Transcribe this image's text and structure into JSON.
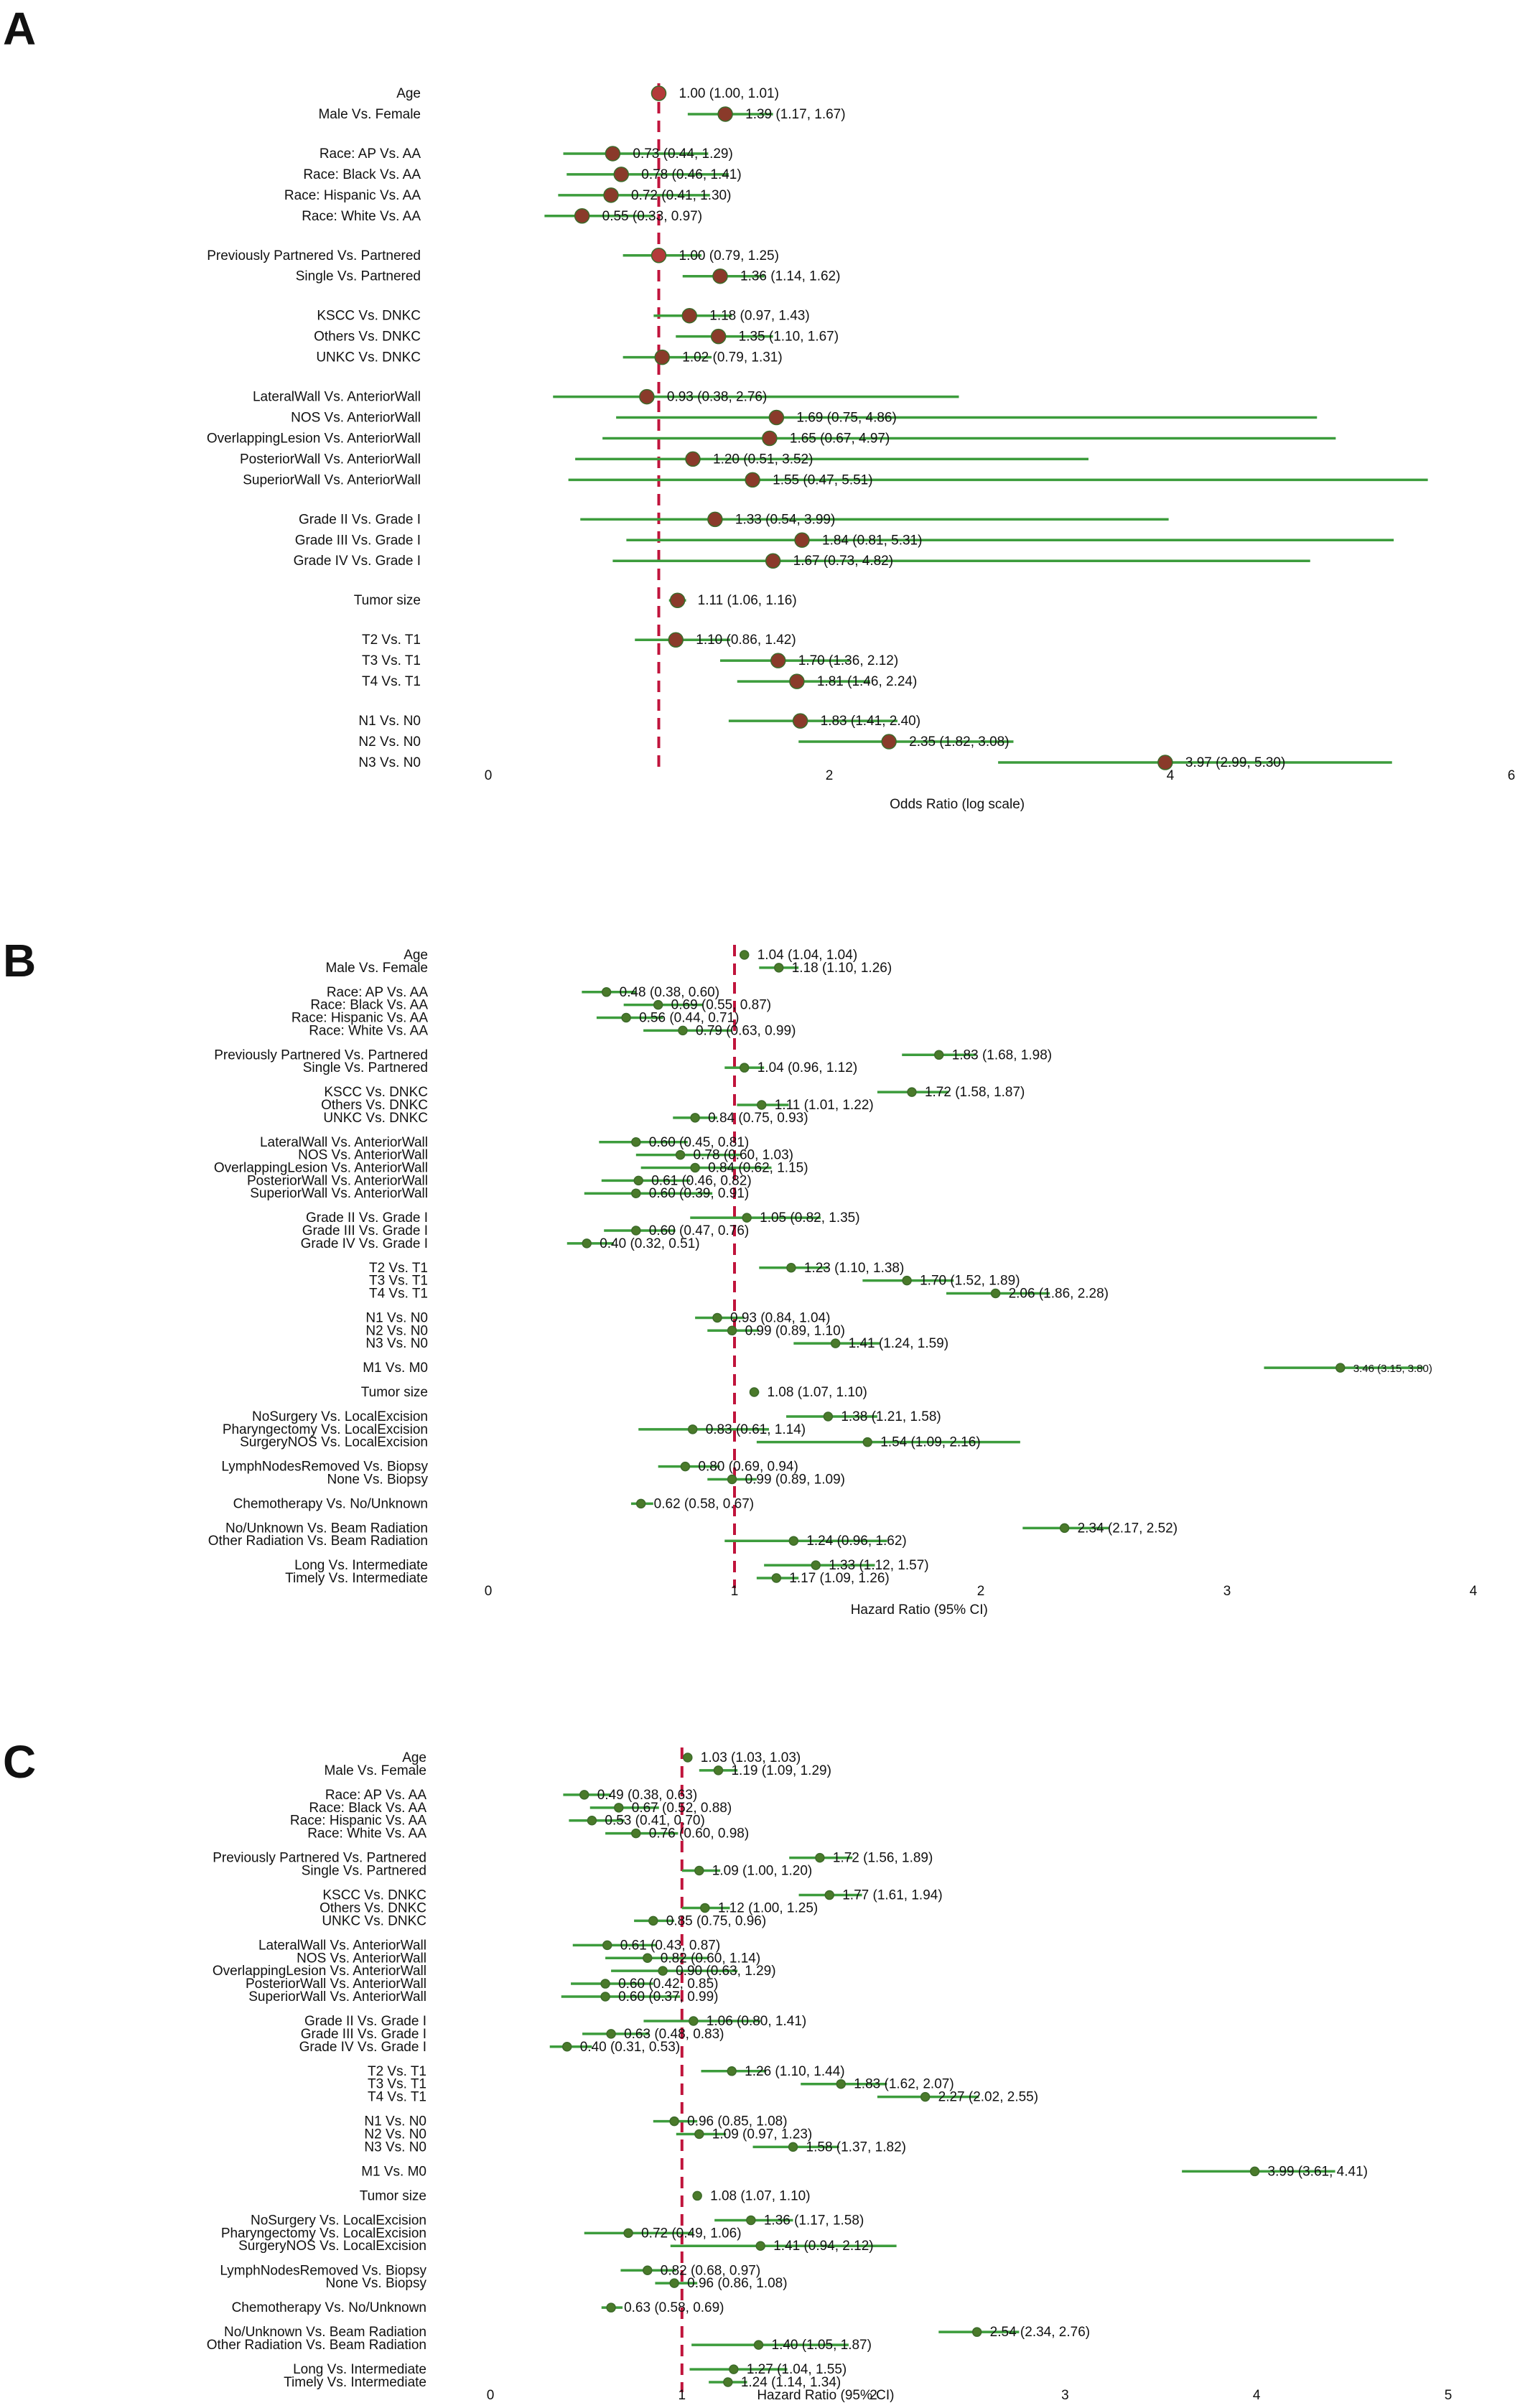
{
  "panels": [
    "A",
    "B",
    "C"
  ],
  "chart_data": [
    {
      "type": "forest",
      "panel": "A",
      "xlabel": "Odds Ratio (log scale)",
      "xticks": [
        0,
        2,
        4,
        6
      ],
      "xlim": [
        0,
        6
      ],
      "reference": 1,
      "colors": {
        "ci": "#3c9c3c",
        "point": "#8a3a2a",
        "ref": "#c0143c"
      },
      "rows": [
        {
          "label": "Age",
          "or": 1.0,
          "lo": 1.0,
          "hi": 1.01,
          "text": "1.00 (1.00, 1.01)",
          "ref": true
        },
        {
          "label": "Male Vs. Female",
          "or": 1.39,
          "lo": 1.17,
          "hi": 1.67,
          "text": "1.39 (1.17, 1.67)"
        },
        {
          "label": "Race: AP Vs. AA",
          "or": 0.73,
          "lo": 0.44,
          "hi": 1.29,
          "text": "0.73 (0.44, 1.29)",
          "gap": true
        },
        {
          "label": "Race: Black Vs. AA",
          "or": 0.78,
          "lo": 0.46,
          "hi": 1.41,
          "text": "0.78 (0.46, 1.41)"
        },
        {
          "label": "Race: Hispanic Vs. AA",
          "or": 0.72,
          "lo": 0.41,
          "hi": 1.3,
          "text": "0.72 (0.41, 1.30)"
        },
        {
          "label": "Race: White Vs. AA",
          "or": 0.55,
          "lo": 0.33,
          "hi": 0.97,
          "text": "0.55 (0.33, 0.97)"
        },
        {
          "label": "Previously Partnered Vs. Partnered",
          "or": 1.0,
          "lo": 0.79,
          "hi": 1.25,
          "text": "1.00 (0.79, 1.25)",
          "gap": true,
          "ref": true
        },
        {
          "label": "Single Vs. Partnered",
          "or": 1.36,
          "lo": 1.14,
          "hi": 1.62,
          "text": "1.36 (1.14, 1.62)"
        },
        {
          "label": "KSCC Vs. DNKC",
          "or": 1.18,
          "lo": 0.97,
          "hi": 1.43,
          "text": "1.18 (0.97, 1.43)",
          "gap": true
        },
        {
          "label": "Others Vs. DNKC",
          "or": 1.35,
          "lo": 1.1,
          "hi": 1.67,
          "text": "1.35 (1.10, 1.67)"
        },
        {
          "label": "UNKC Vs. DNKC",
          "or": 1.02,
          "lo": 0.79,
          "hi": 1.31,
          "text": "1.02 (0.79, 1.31)"
        },
        {
          "label": "LateralWall Vs. AnteriorWall",
          "or": 0.93,
          "lo": 0.38,
          "hi": 2.76,
          "text": "0.93 (0.38, 2.76)",
          "gap": true
        },
        {
          "label": "NOS Vs. AnteriorWall",
          "or": 1.69,
          "lo": 0.75,
          "hi": 4.86,
          "text": "1.69 (0.75, 4.86)"
        },
        {
          "label": "OverlappingLesion Vs. AnteriorWall",
          "or": 1.65,
          "lo": 0.67,
          "hi": 4.97,
          "text": "1.65 (0.67, 4.97)"
        },
        {
          "label": "PosteriorWall Vs. AnteriorWall",
          "or": 1.2,
          "lo": 0.51,
          "hi": 3.52,
          "text": "1.20 (0.51, 3.52)"
        },
        {
          "label": "SuperiorWall Vs. AnteriorWall",
          "or": 1.55,
          "lo": 0.47,
          "hi": 5.51,
          "text": "1.55 (0.47, 5.51)"
        },
        {
          "label": "Grade II Vs. Grade I",
          "or": 1.33,
          "lo": 0.54,
          "hi": 3.99,
          "text": "1.33 (0.54, 3.99)",
          "gap": true
        },
        {
          "label": "Grade III Vs. Grade I",
          "or": 1.84,
          "lo": 0.81,
          "hi": 5.31,
          "text": "1.84 (0.81, 5.31)"
        },
        {
          "label": "Grade IV Vs. Grade I",
          "or": 1.67,
          "lo": 0.73,
          "hi": 4.82,
          "text": "1.67 (0.73, 4.82)"
        },
        {
          "label": "Tumor size",
          "or": 1.11,
          "lo": 1.06,
          "hi": 1.16,
          "text": "1.11 (1.06, 1.16)",
          "gap": true
        },
        {
          "label": "T2 Vs. T1",
          "or": 1.1,
          "lo": 0.86,
          "hi": 1.42,
          "text": "1.10 (0.86, 1.42)",
          "gap": true
        },
        {
          "label": "T3 Vs. T1",
          "or": 1.7,
          "lo": 1.36,
          "hi": 2.12,
          "text": "1.70 (1.36, 2.12)"
        },
        {
          "label": "T4 Vs. T1",
          "or": 1.81,
          "lo": 1.46,
          "hi": 2.24,
          "text": "1.81 (1.46, 2.24)"
        },
        {
          "label": "N1 Vs. N0",
          "or": 1.83,
          "lo": 1.41,
          "hi": 2.4,
          "text": "1.83 (1.41, 2.40)",
          "gap": true
        },
        {
          "label": "N2 Vs. N0",
          "or": 2.35,
          "lo": 1.82,
          "hi": 3.08,
          "text": "2.35 (1.82, 3.08)"
        },
        {
          "label": "N3 Vs. N0",
          "or": 3.97,
          "lo": 2.99,
          "hi": 5.3,
          "text": "3.97 (2.99, 5.30)"
        }
      ]
    },
    {
      "type": "forest",
      "panel": "B",
      "xlabel": "Hazard Ratio (95% CI)",
      "xticks": [
        0,
        1,
        2,
        3,
        4
      ],
      "xlim": [
        0,
        4
      ],
      "reference": 1,
      "colors": {
        "ci": "#3c9c3c",
        "point": "#4a7a2a",
        "ref": "#c0143c"
      },
      "rows": [
        {
          "label": "Age",
          "or": 1.04,
          "lo": 1.04,
          "hi": 1.04,
          "text": "1.04 (1.04, 1.04)"
        },
        {
          "label": "Male Vs. Female",
          "or": 1.18,
          "lo": 1.1,
          "hi": 1.26,
          "text": "1.18 (1.10, 1.26)"
        },
        {
          "label": "Race: AP Vs. AA",
          "or": 0.48,
          "lo": 0.38,
          "hi": 0.6,
          "text": "0.48 (0.38, 0.60)",
          "gap": true
        },
        {
          "label": "Race: Black Vs. AA",
          "or": 0.69,
          "lo": 0.55,
          "hi": 0.87,
          "text": "0.69 (0.55, 0.87)"
        },
        {
          "label": "Race: Hispanic Vs. AA",
          "or": 0.56,
          "lo": 0.44,
          "hi": 0.71,
          "text": "0.56 (0.44, 0.71)"
        },
        {
          "label": "Race: White Vs. AA",
          "or": 0.79,
          "lo": 0.63,
          "hi": 0.99,
          "text": "0.79 (0.63, 0.99)"
        },
        {
          "label": "Previously Partnered Vs. Partnered",
          "or": 1.83,
          "lo": 1.68,
          "hi": 1.98,
          "text": "1.83 (1.68, 1.98)",
          "gap": true
        },
        {
          "label": "Single Vs. Partnered",
          "or": 1.04,
          "lo": 0.96,
          "hi": 1.12,
          "text": "1.04 (0.96, 1.12)"
        },
        {
          "label": "KSCC Vs. DNKC",
          "or": 1.72,
          "lo": 1.58,
          "hi": 1.87,
          "text": "1.72 (1.58, 1.87)",
          "gap": true
        },
        {
          "label": "Others Vs. DNKC",
          "or": 1.11,
          "lo": 1.01,
          "hi": 1.22,
          "text": "1.11 (1.01, 1.22)"
        },
        {
          "label": "UNKC Vs. DNKC",
          "or": 0.84,
          "lo": 0.75,
          "hi": 0.93,
          "text": "0.84 (0.75, 0.93)"
        },
        {
          "label": "LateralWall Vs. AnteriorWall",
          "or": 0.6,
          "lo": 0.45,
          "hi": 0.81,
          "text": "0.60 (0.45, 0.81)",
          "gap": true
        },
        {
          "label": "NOS Vs. AnteriorWall",
          "or": 0.78,
          "lo": 0.6,
          "hi": 1.03,
          "text": "0.78 (0.60, 1.03)"
        },
        {
          "label": "OverlappingLesion Vs. AnteriorWall",
          "or": 0.84,
          "lo": 0.62,
          "hi": 1.15,
          "text": "0.84 (0.62, 1.15)"
        },
        {
          "label": "PosteriorWall Vs. AnteriorWall",
          "or": 0.61,
          "lo": 0.46,
          "hi": 0.82,
          "text": "0.61 (0.46, 0.82)"
        },
        {
          "label": "SuperiorWall Vs. AnteriorWall",
          "or": 0.6,
          "lo": 0.39,
          "hi": 0.91,
          "text": "0.60 (0.39, 0.91)"
        },
        {
          "label": "Grade II Vs. Grade I",
          "or": 1.05,
          "lo": 0.82,
          "hi": 1.35,
          "text": "1.05 (0.82, 1.35)",
          "gap": true
        },
        {
          "label": "Grade III Vs. Grade I",
          "or": 0.6,
          "lo": 0.47,
          "hi": 0.76,
          "text": "0.60 (0.47, 0.76)"
        },
        {
          "label": "Grade IV Vs. Grade I",
          "or": 0.4,
          "lo": 0.32,
          "hi": 0.51,
          "text": "0.40 (0.32, 0.51)"
        },
        {
          "label": "T2 Vs. T1",
          "or": 1.23,
          "lo": 1.1,
          "hi": 1.38,
          "text": "1.23 (1.10, 1.38)",
          "gap": true
        },
        {
          "label": "T3 Vs. T1",
          "or": 1.7,
          "lo": 1.52,
          "hi": 1.89,
          "text": "1.70 (1.52, 1.89)"
        },
        {
          "label": "T4 Vs. T1",
          "or": 2.06,
          "lo": 1.86,
          "hi": 2.28,
          "text": "2.06 (1.86, 2.28)"
        },
        {
          "label": "N1 Vs. N0",
          "or": 0.93,
          "lo": 0.84,
          "hi": 1.04,
          "text": "0.93 (0.84, 1.04)",
          "gap": true
        },
        {
          "label": "N2 Vs. N0",
          "or": 0.99,
          "lo": 0.89,
          "hi": 1.1,
          "text": "0.99 (0.89, 1.10)"
        },
        {
          "label": "N3 Vs. N0",
          "or": 1.41,
          "lo": 1.24,
          "hi": 1.59,
          "text": "1.41 (1.24, 1.59)"
        },
        {
          "label": "M1 Vs. M0",
          "or": 3.46,
          "lo": 3.15,
          "hi": 3.8,
          "text": "3.46 (3.15, 3.80)",
          "gap": true,
          "small": true
        },
        {
          "label": "Tumor size",
          "or": 1.08,
          "lo": 1.07,
          "hi": 1.1,
          "text": "1.08 (1.07, 1.10)",
          "gap": true
        },
        {
          "label": "NoSurgery Vs. LocalExcision",
          "or": 1.38,
          "lo": 1.21,
          "hi": 1.58,
          "text": "1.38 (1.21, 1.58)",
          "gap": true
        },
        {
          "label": "Pharyngectomy Vs. LocalExcision",
          "or": 0.83,
          "lo": 0.61,
          "hi": 1.14,
          "text": "0.83 (0.61, 1.14)"
        },
        {
          "label": "SurgeryNOS Vs. LocalExcision",
          "or": 1.54,
          "lo": 1.09,
          "hi": 2.16,
          "text": "1.54 (1.09, 2.16)"
        },
        {
          "label": "LymphNodesRemoved Vs. Biopsy",
          "or": 0.8,
          "lo": 0.69,
          "hi": 0.94,
          "text": "0.80 (0.69, 0.94)",
          "gap": true
        },
        {
          "label": "None Vs. Biopsy",
          "or": 0.99,
          "lo": 0.89,
          "hi": 1.09,
          "text": "0.99 (0.89, 1.09)"
        },
        {
          "label": "Chemotherapy Vs. No/Unknown",
          "or": 0.62,
          "lo": 0.58,
          "hi": 0.67,
          "text": "0.62 (0.58, 0.67)",
          "gap": true
        },
        {
          "label": "No/Unknown Vs. Beam Radiation",
          "or": 2.34,
          "lo": 2.17,
          "hi": 2.52,
          "text": "2.34 (2.17, 2.52)",
          "gap": true
        },
        {
          "label": "Other Radiation Vs. Beam Radiation",
          "or": 1.24,
          "lo": 0.96,
          "hi": 1.62,
          "text": "1.24 (0.96, 1.62)"
        },
        {
          "label": "Long Vs. Intermediate",
          "or": 1.33,
          "lo": 1.12,
          "hi": 1.57,
          "text": "1.33 (1.12, 1.57)",
          "gap": true
        },
        {
          "label": "Timely Vs. Intermediate",
          "or": 1.17,
          "lo": 1.09,
          "hi": 1.26,
          "text": "1.17 (1.09, 1.26)"
        }
      ]
    },
    {
      "type": "forest",
      "panel": "C",
      "xlabel": "Hazard Ratio (95% CI)",
      "xticks": [
        0,
        1,
        2,
        3,
        4,
        5
      ],
      "xlim": [
        0,
        5
      ],
      "reference": 1,
      "colors": {
        "ci": "#3c9c3c",
        "point": "#4a7a2a",
        "ref": "#c0143c"
      },
      "rows": [
        {
          "label": "Age",
          "or": 1.03,
          "lo": 1.03,
          "hi": 1.03,
          "text": "1.03 (1.03, 1.03)"
        },
        {
          "label": "Male Vs. Female",
          "or": 1.19,
          "lo": 1.09,
          "hi": 1.29,
          "text": "1.19 (1.09, 1.29)"
        },
        {
          "label": "Race: AP Vs. AA",
          "or": 0.49,
          "lo": 0.38,
          "hi": 0.63,
          "text": "0.49 (0.38, 0.63)",
          "gap": true
        },
        {
          "label": "Race: Black Vs. AA",
          "or": 0.67,
          "lo": 0.52,
          "hi": 0.88,
          "text": "0.67 (0.52, 0.88)"
        },
        {
          "label": "Race: Hispanic Vs. AA",
          "or": 0.53,
          "lo": 0.41,
          "hi": 0.7,
          "text": "0.53 (0.41, 0.70)"
        },
        {
          "label": "Race: White Vs. AA",
          "or": 0.76,
          "lo": 0.6,
          "hi": 0.98,
          "text": "0.76 (0.60, 0.98)"
        },
        {
          "label": "Previously Partnered Vs. Partnered",
          "or": 1.72,
          "lo": 1.56,
          "hi": 1.89,
          "text": "1.72 (1.56, 1.89)",
          "gap": true
        },
        {
          "label": "Single Vs. Partnered",
          "or": 1.09,
          "lo": 1.0,
          "hi": 1.2,
          "text": "1.09 (1.00, 1.20)"
        },
        {
          "label": "KSCC Vs. DNKC",
          "or": 1.77,
          "lo": 1.61,
          "hi": 1.94,
          "text": "1.77 (1.61, 1.94)",
          "gap": true
        },
        {
          "label": "Others Vs. DNKC",
          "or": 1.12,
          "lo": 1.0,
          "hi": 1.25,
          "text": "1.12 (1.00, 1.25)"
        },
        {
          "label": "UNKC Vs. DNKC",
          "or": 0.85,
          "lo": 0.75,
          "hi": 0.96,
          "text": "0.85 (0.75, 0.96)"
        },
        {
          "label": "LateralWall Vs. AnteriorWall",
          "or": 0.61,
          "lo": 0.43,
          "hi": 0.87,
          "text": "0.61 (0.43, 0.87)",
          "gap": true
        },
        {
          "label": "NOS Vs. AnteriorWall",
          "or": 0.82,
          "lo": 0.6,
          "hi": 1.14,
          "text": "0.82 (0.60, 1.14)"
        },
        {
          "label": "OverlappingLesion Vs. AnteriorWall",
          "or": 0.9,
          "lo": 0.63,
          "hi": 1.29,
          "text": "0.90 (0.63, 1.29)"
        },
        {
          "label": "PosteriorWall Vs. AnteriorWall",
          "or": 0.6,
          "lo": 0.42,
          "hi": 0.85,
          "text": "0.60 (0.42, 0.85)"
        },
        {
          "label": "SuperiorWall Vs. AnteriorWall",
          "or": 0.6,
          "lo": 0.37,
          "hi": 0.99,
          "text": "0.60 (0.37, 0.99)"
        },
        {
          "label": "Grade II Vs. Grade I",
          "or": 1.06,
          "lo": 0.8,
          "hi": 1.41,
          "text": "1.06 (0.80, 1.41)",
          "gap": true
        },
        {
          "label": "Grade III Vs. Grade I",
          "or": 0.63,
          "lo": 0.48,
          "hi": 0.83,
          "text": "0.63 (0.48, 0.83)"
        },
        {
          "label": "Grade IV Vs. Grade I",
          "or": 0.4,
          "lo": 0.31,
          "hi": 0.53,
          "text": "0.40 (0.31, 0.53)"
        },
        {
          "label": "T2 Vs. T1",
          "or": 1.26,
          "lo": 1.1,
          "hi": 1.44,
          "text": "1.26 (1.10, 1.44)",
          "gap": true
        },
        {
          "label": "T3 Vs. T1",
          "or": 1.83,
          "lo": 1.62,
          "hi": 2.07,
          "text": "1.83 (1.62, 2.07)"
        },
        {
          "label": "T4 Vs. T1",
          "or": 2.27,
          "lo": 2.02,
          "hi": 2.55,
          "text": "2.27 (2.02, 2.55)"
        },
        {
          "label": "N1 Vs. N0",
          "or": 0.96,
          "lo": 0.85,
          "hi": 1.08,
          "text": "0.96 (0.85, 1.08)",
          "gap": true
        },
        {
          "label": "N2 Vs. N0",
          "or": 1.09,
          "lo": 0.97,
          "hi": 1.23,
          "text": "1.09 (0.97, 1.23)"
        },
        {
          "label": "N3 Vs. N0",
          "or": 1.58,
          "lo": 1.37,
          "hi": 1.82,
          "text": "1.58 (1.37, 1.82)"
        },
        {
          "label": "M1 Vs. M0",
          "or": 3.99,
          "lo": 3.61,
          "hi": 4.41,
          "text": "3.99 (3.61, 4.41)",
          "gap": true
        },
        {
          "label": "Tumor size",
          "or": 1.08,
          "lo": 1.07,
          "hi": 1.1,
          "text": "1.08 (1.07, 1.10)",
          "gap": true
        },
        {
          "label": "NoSurgery Vs. LocalExcision",
          "or": 1.36,
          "lo": 1.17,
          "hi": 1.58,
          "text": "1.36 (1.17, 1.58)",
          "gap": true
        },
        {
          "label": "Pharyngectomy Vs. LocalExcision",
          "or": 0.72,
          "lo": 0.49,
          "hi": 1.06,
          "text": "0.72 (0.49, 1.06)"
        },
        {
          "label": "SurgeryNOS Vs. LocalExcision",
          "or": 1.41,
          "lo": 0.94,
          "hi": 2.12,
          "text": "1.41 (0.94, 2.12)"
        },
        {
          "label": "LymphNodesRemoved Vs. Biopsy",
          "or": 0.82,
          "lo": 0.68,
          "hi": 0.97,
          "text": "0.82 (0.68, 0.97)",
          "gap": true
        },
        {
          "label": "None Vs. Biopsy",
          "or": 0.96,
          "lo": 0.86,
          "hi": 1.08,
          "text": "0.96 (0.86, 1.08)"
        },
        {
          "label": "Chemotherapy Vs. No/Unknown",
          "or": 0.63,
          "lo": 0.58,
          "hi": 0.69,
          "text": "0.63 (0.58, 0.69)",
          "gap": true
        },
        {
          "label": "No/Unknown Vs. Beam Radiation",
          "or": 2.54,
          "lo": 2.34,
          "hi": 2.76,
          "text": "2.54 (2.34, 2.76)",
          "gap": true
        },
        {
          "label": "Other Radiation Vs. Beam Radiation",
          "or": 1.4,
          "lo": 1.05,
          "hi": 1.87,
          "text": "1.40 (1.05, 1.87)"
        },
        {
          "label": "Long Vs. Intermediate",
          "or": 1.27,
          "lo": 1.04,
          "hi": 1.55,
          "text": "1.27 (1.04, 1.55)",
          "gap": true
        },
        {
          "label": "Timely Vs. Intermediate",
          "or": 1.24,
          "lo": 1.14,
          "hi": 1.34,
          "text": "1.24 (1.14, 1.34)"
        }
      ]
    }
  ]
}
